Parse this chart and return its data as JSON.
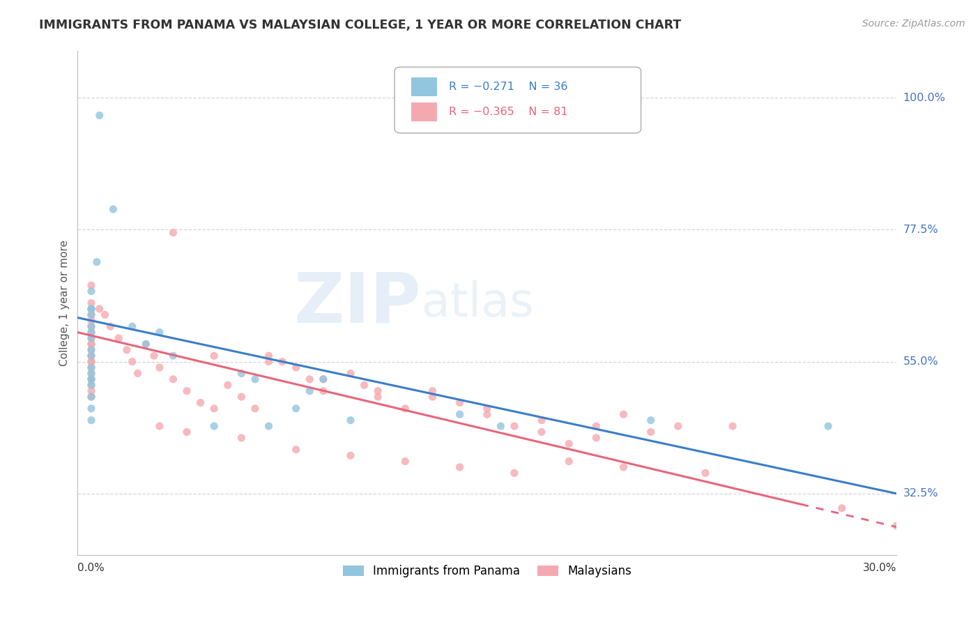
{
  "title": "IMMIGRANTS FROM PANAMA VS MALAYSIAN COLLEGE, 1 YEAR OR MORE CORRELATION CHART",
  "source_text": "Source: ZipAtlas.com",
  "ylabel_label": "College, 1 year or more",
  "legend_blue_r": "R = −0.271",
  "legend_blue_n": "N = 36",
  "legend_pink_r": "R = −0.365",
  "legend_pink_n": "N = 81",
  "legend_label_blue": "Immigrants from Panama",
  "legend_label_pink": "Malaysians",
  "blue_color": "#92c5de",
  "pink_color": "#f4a9b0",
  "blue_line_color": "#3a7dc9",
  "pink_line_color": "#e8657a",
  "background_color": "#ffffff",
  "grid_color": "#cccccc",
  "x_min": 0.0,
  "x_max": 0.3,
  "y_min": 0.22,
  "y_max": 1.08,
  "y_ticks": [
    1.0,
    0.775,
    0.55,
    0.325
  ],
  "y_tick_labels": [
    "100.0%",
    "77.5%",
    "55.0%",
    "32.5%"
  ],
  "blue_line_x0": 0.0,
  "blue_line_y0": 0.625,
  "blue_line_x1": 0.3,
  "blue_line_y1": 0.325,
  "pink_line_x0": 0.0,
  "pink_line_y0": 0.6,
  "pink_line_x1": 0.3,
  "pink_line_y1": 0.268,
  "pink_line_solid_end": 0.265,
  "blue_scatter_x": [
    0.008,
    0.013,
    0.005,
    0.005,
    0.007,
    0.005,
    0.005,
    0.005,
    0.005,
    0.005,
    0.005,
    0.005,
    0.005,
    0.005,
    0.005,
    0.005,
    0.005,
    0.005,
    0.005,
    0.005,
    0.02,
    0.025,
    0.03,
    0.035,
    0.06,
    0.065,
    0.08,
    0.1,
    0.14,
    0.21,
    0.05,
    0.07,
    0.09,
    0.085,
    0.155,
    0.275
  ],
  "blue_scatter_y": [
    0.97,
    0.81,
    0.64,
    0.64,
    0.72,
    0.67,
    0.63,
    0.61,
    0.6,
    0.59,
    0.57,
    0.56,
    0.54,
    0.53,
    0.52,
    0.51,
    0.52,
    0.49,
    0.47,
    0.45,
    0.61,
    0.58,
    0.6,
    0.56,
    0.53,
    0.52,
    0.47,
    0.45,
    0.46,
    0.45,
    0.44,
    0.44,
    0.52,
    0.5,
    0.44,
    0.44
  ],
  "pink_scatter_x": [
    0.005,
    0.005,
    0.005,
    0.005,
    0.005,
    0.005,
    0.005,
    0.005,
    0.005,
    0.005,
    0.005,
    0.005,
    0.005,
    0.005,
    0.005,
    0.005,
    0.005,
    0.005,
    0.005,
    0.005,
    0.008,
    0.01,
    0.012,
    0.015,
    0.018,
    0.02,
    0.022,
    0.025,
    0.028,
    0.03,
    0.035,
    0.04,
    0.045,
    0.05,
    0.055,
    0.06,
    0.065,
    0.07,
    0.075,
    0.08,
    0.085,
    0.09,
    0.1,
    0.105,
    0.11,
    0.12,
    0.13,
    0.14,
    0.15,
    0.16,
    0.17,
    0.18,
    0.19,
    0.2,
    0.22,
    0.24,
    0.28,
    0.3,
    0.035,
    0.05,
    0.07,
    0.09,
    0.11,
    0.13,
    0.15,
    0.17,
    0.19,
    0.21,
    0.03,
    0.04,
    0.06,
    0.08,
    0.1,
    0.12,
    0.14,
    0.16,
    0.18,
    0.2,
    0.23
  ],
  "pink_scatter_y": [
    0.68,
    0.65,
    0.64,
    0.63,
    0.62,
    0.61,
    0.6,
    0.59,
    0.58,
    0.58,
    0.57,
    0.56,
    0.55,
    0.55,
    0.54,
    0.53,
    0.52,
    0.51,
    0.5,
    0.49,
    0.64,
    0.63,
    0.61,
    0.59,
    0.57,
    0.55,
    0.53,
    0.58,
    0.56,
    0.54,
    0.52,
    0.5,
    0.48,
    0.47,
    0.51,
    0.49,
    0.47,
    0.56,
    0.55,
    0.54,
    0.52,
    0.5,
    0.53,
    0.51,
    0.49,
    0.47,
    0.5,
    0.48,
    0.46,
    0.44,
    0.43,
    0.41,
    0.42,
    0.46,
    0.44,
    0.44,
    0.3,
    0.27,
    0.77,
    0.56,
    0.55,
    0.52,
    0.5,
    0.49,
    0.47,
    0.45,
    0.44,
    0.43,
    0.44,
    0.43,
    0.42,
    0.4,
    0.39,
    0.38,
    0.37,
    0.36,
    0.38,
    0.37,
    0.36
  ]
}
